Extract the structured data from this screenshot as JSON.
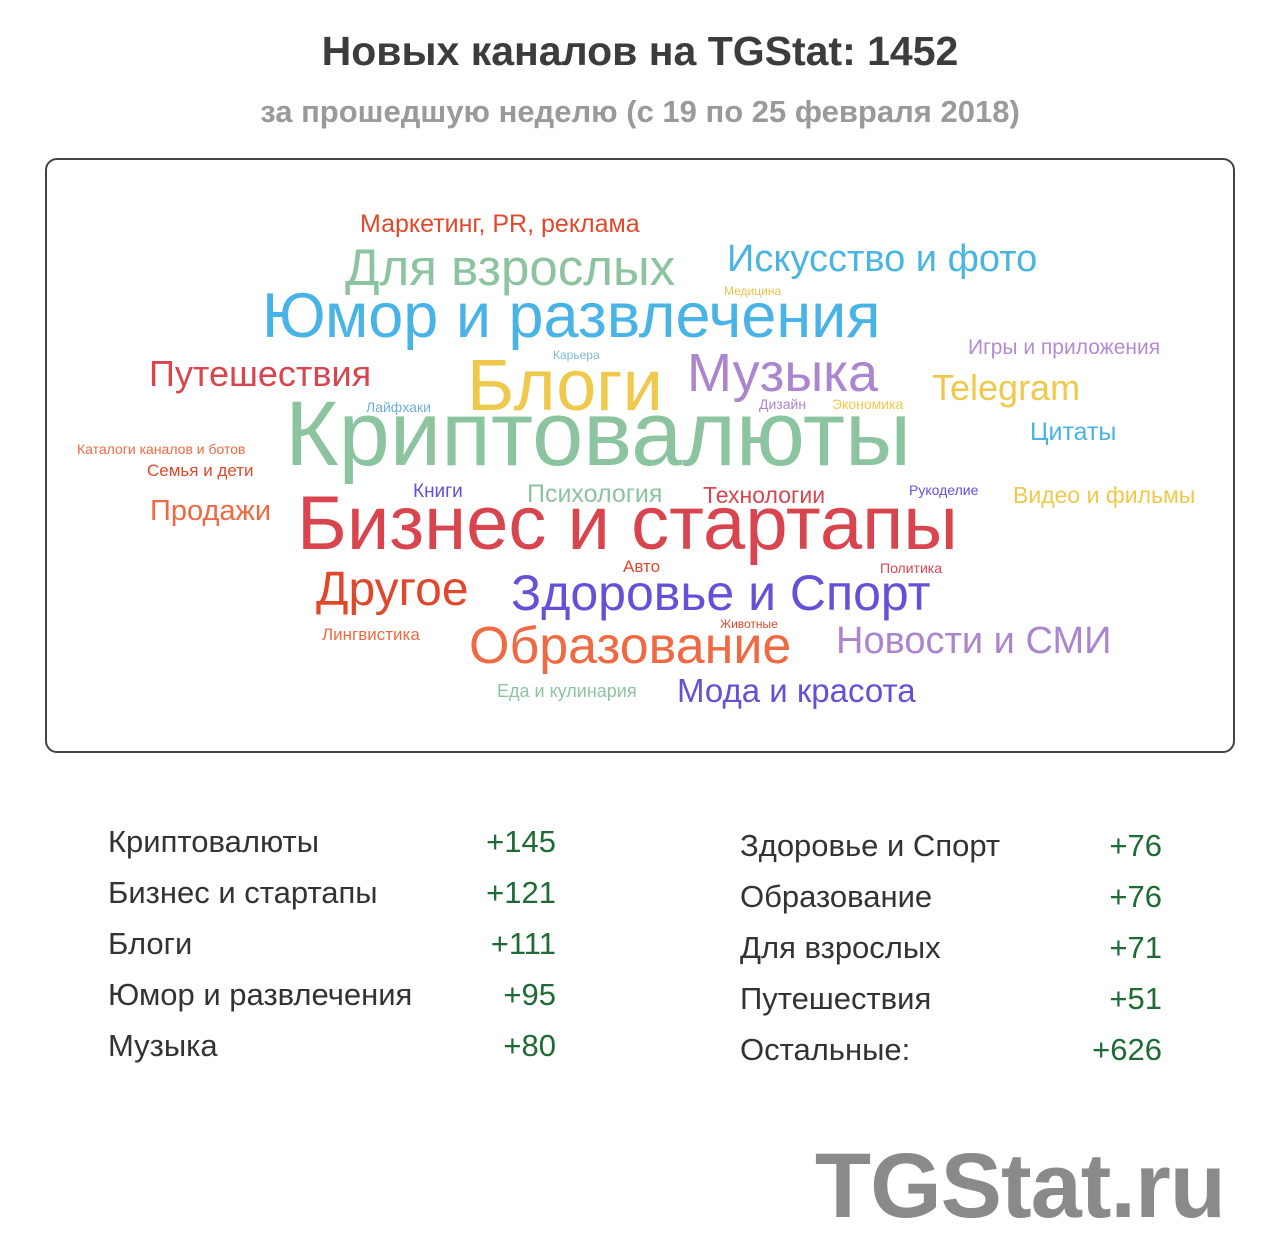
{
  "header": {
    "title": "Новых каналов на TGStat: 1452",
    "subtitle": "за прошедшую неделю (с 19 по 25 февраля 2018)"
  },
  "cloud": {
    "words": [
      {
        "text": "Маркетинг, PR, реклама",
        "color": "#e0482b"
      },
      {
        "text": "Для взрослых",
        "color": "#8cc4a0"
      },
      {
        "text": "Искусство и фото",
        "color": "#4ab5e0"
      },
      {
        "text": "Медицина",
        "color": "#e9c34b"
      },
      {
        "text": "Юмор и развлечения",
        "color": "#4ab3e6"
      },
      {
        "text": "Игры и приложения",
        "color": "#b48ad1"
      },
      {
        "text": "Карьера",
        "color": "#7bb8d6"
      },
      {
        "text": "Путешествия",
        "color": "#d9454f"
      },
      {
        "text": "Блоги",
        "color": "#efc94b"
      },
      {
        "text": "Музыка",
        "color": "#ab86cf"
      },
      {
        "text": "Telegram",
        "color": "#efc94b"
      },
      {
        "text": "Лайфхаки",
        "color": "#6cb1de"
      },
      {
        "text": "Дизайн",
        "color": "#ab86cf"
      },
      {
        "text": "Экономика",
        "color": "#efc94b"
      },
      {
        "text": "Криптовалюты",
        "color": "#8cc4a0"
      },
      {
        "text": "Цитаты",
        "color": "#4ab3e6"
      },
      {
        "text": "Каталоги каналов и ботов",
        "color": "#ef6a42"
      },
      {
        "text": "Семья и дети",
        "color": "#e0482b"
      },
      {
        "text": "Книги",
        "color": "#6550d8"
      },
      {
        "text": "Психология",
        "color": "#8cc4a0"
      },
      {
        "text": "Технологии",
        "color": "#d9454f"
      },
      {
        "text": "Рукоделие",
        "color": "#6550d8"
      },
      {
        "text": "Видео и фильмы",
        "color": "#efc94b"
      },
      {
        "text": "Продажи",
        "color": "#ef6a42"
      },
      {
        "text": "Бизнес и стартапы",
        "color": "#d9454f"
      },
      {
        "text": "Авто",
        "color": "#e0482b"
      },
      {
        "text": "Политика",
        "color": "#d9454f"
      },
      {
        "text": "Другое",
        "color": "#e0482b"
      },
      {
        "text": "Здоровье и Спорт",
        "color": "#6550d8"
      },
      {
        "text": "Лингвистика",
        "color": "#ef6a42"
      },
      {
        "text": "Животные",
        "color": "#e0482b"
      },
      {
        "text": "Образование",
        "color": "#ef6a42"
      },
      {
        "text": "Новости и СМИ",
        "color": "#ab86cf"
      },
      {
        "text": "Еда и кулинария",
        "color": "#8cc4a0"
      },
      {
        "text": "Мода и красота",
        "color": "#6550d8"
      }
    ]
  },
  "stats": {
    "left": [
      {
        "label": "Криптовалюты",
        "value": "+145"
      },
      {
        "label": "Бизнес и стартапы",
        "value": "+121"
      },
      {
        "label": "Блоги",
        "value": "+111"
      },
      {
        "label": "Юмор и развлечения",
        "value": "+95"
      },
      {
        "label": "Музыка",
        "value": "+80"
      }
    ],
    "right": [
      {
        "label": "Здоровье и Спорт",
        "value": "+76"
      },
      {
        "label": "Образование",
        "value": "+76"
      },
      {
        "label": "Для взрослых",
        "value": "+71"
      },
      {
        "label": "Путешествия",
        "value": "+51"
      },
      {
        "label": "Остальные:",
        "value": "+626"
      }
    ]
  },
  "brand": {
    "text": "TGStat.ru"
  }
}
